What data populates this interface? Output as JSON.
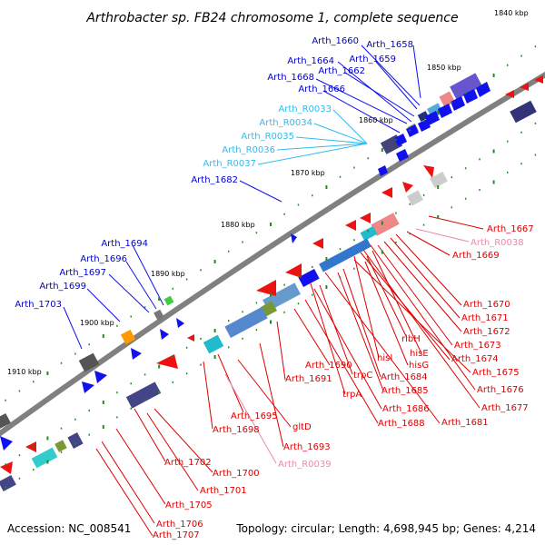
{
  "title": "Arthrobacter sp. FB24 chromosome 1, complete sequence",
  "footer": {
    "accession": "Accession: NC_008541",
    "topology": "Topology: circular; Length: 4,698,945 bp; Genes: 4,214"
  },
  "colors": {
    "backbone": "#808080",
    "forward_label": "#0000cc",
    "forward_rna_label": "#33bbee",
    "reverse_label": "#dd0000",
    "reverse_rna_label": "#ee88aa",
    "tick": "#228b22",
    "gene_red": "#ee1111",
    "gene_blue": "#1111ee"
  },
  "kbp_marks": [
    "1840 kbp",
    "1850 kbp",
    "1860 kbp",
    "1870 kbp",
    "1880 kbp",
    "1890 kbp",
    "1900 kbp",
    "1910 kbp"
  ],
  "gene_labels": {
    "forward": [
      "Arth_1660",
      "Arth_1658",
      "Arth_1664",
      "Arth_1659",
      "Arth_1668",
      "Arth_1662",
      "Arth_1666",
      "Arth_1682",
      "Arth_1694",
      "Arth_1696",
      "Arth_1697",
      "Arth_1699",
      "Arth_1703"
    ],
    "forward_rna": [
      "Arth_R0033",
      "Arth_R0034",
      "Arth_R0035",
      "Arth_R0036",
      "Arth_R0037"
    ],
    "reverse": [
      "Arth_1667",
      "Arth_1669",
      "Arth_1670",
      "Arth_1671",
      "Arth_1672",
      "Arth_1673",
      "ribH",
      "hisE",
      "hisI",
      "Arth_1674",
      "hisG",
      "Arth_1675",
      "Arth_1690",
      "trpC",
      "Arth_1684",
      "Arth_1685",
      "Arth_1691",
      "trpA",
      "Arth_1676",
      "Arth_1677",
      "Arth_1686",
      "Arth_1681",
      "Arth_1688",
      "Arth_1695",
      "Arth_1698",
      "gltD",
      "Arth_1693",
      "Arth_1702",
      "Arth_1700",
      "Arth_1701",
      "Arth_1705",
      "Arth_1706",
      "Arth_1707"
    ],
    "reverse_rna": [
      "Arth_R0038",
      "Arth_R0039"
    ]
  }
}
